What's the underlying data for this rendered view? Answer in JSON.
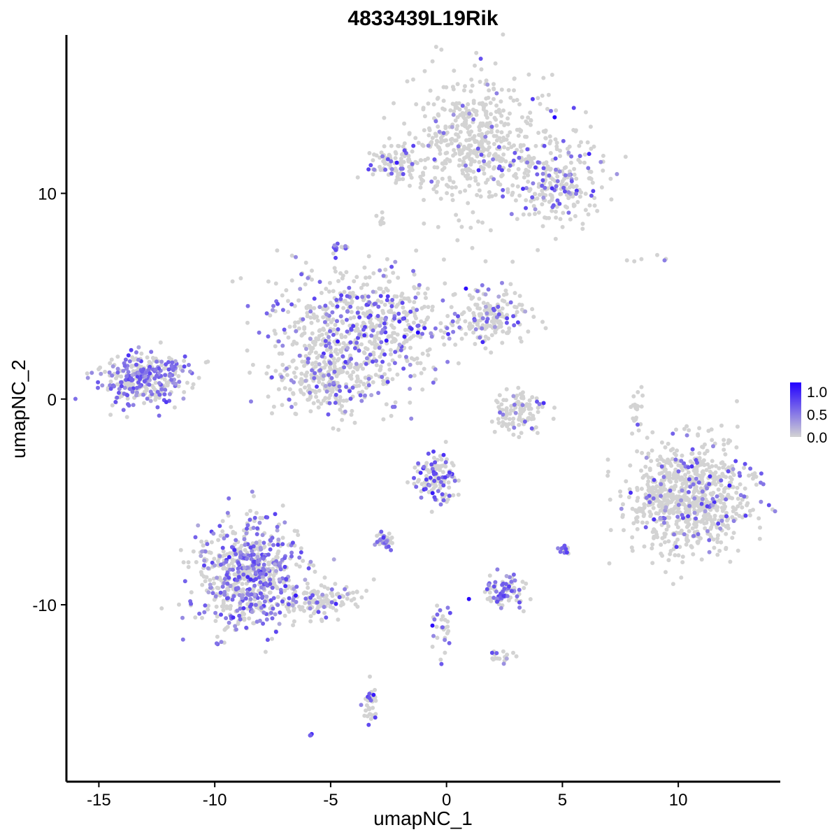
{
  "chart_data": {
    "type": "scatter",
    "title": "4833439L19Rik",
    "xlabel": "umapNC_1",
    "ylabel": "umapNC_2",
    "xlim": [
      -16.4,
      14.4
    ],
    "ylim": [
      -18.6,
      17.7
    ],
    "x_ticks": [
      -15,
      -10,
      -5,
      0,
      5,
      10
    ],
    "x_tick_labels": [
      "-15",
      "-10",
      "-5",
      "0",
      "5",
      "10"
    ],
    "y_ticks": [
      -10,
      0,
      10
    ],
    "y_tick_labels": [
      "-10",
      "0",
      "10"
    ],
    "grid": false,
    "legend": {
      "placement": "right",
      "min": 0.0,
      "max": 1.2,
      "ticks": [
        1.0,
        0.5,
        0.0
      ],
      "tick_labels": [
        "1.0",
        "0.5",
        "0.0"
      ],
      "colors": {
        "low": "#d3d3d3",
        "high": "#2200ff"
      }
    },
    "clusters": [
      {
        "id": "top-right",
        "cx": 1.5,
        "cy": 12.5,
        "sx": 1.6,
        "sy": 1.6,
        "n": 550,
        "expr_rate": 0.1,
        "mean_expr": 0.55
      },
      {
        "id": "top-arm",
        "cx": 4.8,
        "cy": 10.6,
        "sx": 0.9,
        "sy": 1.2,
        "n": 220,
        "expr_rate": 0.18,
        "mean_expr": 0.6
      },
      {
        "id": "top-left-arm",
        "cx": -2.2,
        "cy": 11.4,
        "sx": 0.6,
        "sy": 0.4,
        "n": 90,
        "expr_rate": 0.2,
        "mean_expr": 0.6
      },
      {
        "id": "center-star",
        "cx": -3.8,
        "cy": 3.5,
        "sx": 2.0,
        "sy": 1.4,
        "n": 650,
        "expr_rate": 0.3,
        "mean_expr": 0.6
      },
      {
        "id": "center-lower",
        "cx": -4.8,
        "cy": 0.8,
        "sx": 1.2,
        "sy": 0.9,
        "n": 240,
        "expr_rate": 0.22,
        "mean_expr": 0.55
      },
      {
        "id": "center-right",
        "cx": 1.8,
        "cy": 4.0,
        "sx": 0.9,
        "sy": 0.7,
        "n": 180,
        "expr_rate": 0.14,
        "mean_expr": 0.55
      },
      {
        "id": "left-island",
        "cx": -13.0,
        "cy": 1.0,
        "sx": 0.9,
        "sy": 0.6,
        "n": 320,
        "expr_rate": 0.45,
        "mean_expr": 0.55
      },
      {
        "id": "small-arc",
        "cx": 3.2,
        "cy": -0.6,
        "sx": 0.6,
        "sy": 0.5,
        "n": 110,
        "expr_rate": 0.08,
        "mean_expr": 0.5
      },
      {
        "id": "right-big",
        "cx": 10.6,
        "cy": -4.8,
        "sx": 1.3,
        "sy": 1.3,
        "n": 820,
        "expr_rate": 0.12,
        "mean_expr": 0.6
      },
      {
        "id": "bottom-left",
        "cx": -8.5,
        "cy": -8.6,
        "sx": 1.1,
        "sy": 1.3,
        "n": 700,
        "expr_rate": 0.45,
        "mean_expr": 0.55
      },
      {
        "id": "bottom-tail",
        "cx": -5.6,
        "cy": -9.8,
        "sx": 1.0,
        "sy": 0.45,
        "n": 130,
        "expr_rate": 0.2,
        "mean_expr": 0.6
      },
      {
        "id": "mid-bottom",
        "cx": -0.5,
        "cy": -3.8,
        "sx": 0.45,
        "sy": 0.6,
        "n": 140,
        "expr_rate": 0.32,
        "mean_expr": 0.7
      },
      {
        "id": "mid-bottom-sm",
        "cx": -2.6,
        "cy": -6.9,
        "sx": 0.25,
        "sy": 0.2,
        "n": 40,
        "expr_rate": 0.35,
        "mean_expr": 0.6
      },
      {
        "id": "bottom-mid-r",
        "cx": 2.4,
        "cy": -9.4,
        "sx": 0.45,
        "sy": 0.35,
        "n": 90,
        "expr_rate": 0.4,
        "mean_expr": 0.6
      },
      {
        "id": "bottom-small",
        "cx": -3.3,
        "cy": -14.8,
        "sx": 0.15,
        "sy": 0.5,
        "n": 35,
        "expr_rate": 0.35,
        "mean_expr": 0.7
      },
      {
        "id": "right-sliver",
        "cx": 8.2,
        "cy": -0.6,
        "sx": 0.15,
        "sy": 0.5,
        "n": 20,
        "expr_rate": 0.05,
        "mean_expr": 0.5
      },
      {
        "id": "right-tiny",
        "cx": 8.8,
        "cy": -4.8,
        "sx": 0.15,
        "sy": 0.3,
        "n": 20,
        "expr_rate": 0.3,
        "mean_expr": 0.6
      },
      {
        "id": "b-tiny-1",
        "cx": 5.1,
        "cy": -7.3,
        "sx": 0.12,
        "sy": 0.15,
        "n": 14,
        "expr_rate": 0.6,
        "mean_expr": 0.7
      },
      {
        "id": "b-tiny-2",
        "cx": 2.3,
        "cy": -12.5,
        "sx": 0.3,
        "sy": 0.15,
        "n": 18,
        "expr_rate": 0.3,
        "mean_expr": 0.5
      },
      {
        "id": "b-tiny-3",
        "cx": -0.2,
        "cy": -11.4,
        "sx": 0.3,
        "sy": 0.8,
        "n": 30,
        "expr_rate": 0.3,
        "mean_expr": 0.7
      },
      {
        "id": "top-islet",
        "cx": -4.6,
        "cy": 7.4,
        "sx": 0.15,
        "sy": 0.12,
        "n": 14,
        "expr_rate": 0.7,
        "mean_expr": 0.6
      },
      {
        "id": "top-dot",
        "cx": -2.8,
        "cy": 8.7,
        "sx": 0.12,
        "sy": 0.2,
        "n": 8,
        "expr_rate": 0.0,
        "mean_expr": 0.0
      },
      {
        "id": "far-bottom",
        "cx": -5.9,
        "cy": -16.3,
        "sx": 0.08,
        "sy": 0.05,
        "n": 4,
        "expr_rate": 1.0,
        "mean_expr": 0.55
      },
      {
        "id": "right-specks",
        "cx": 8.8,
        "cy": 6.8,
        "sx": 0.6,
        "sy": 0.1,
        "n": 6,
        "expr_rate": 0.1,
        "mean_expr": 0.5
      }
    ]
  }
}
